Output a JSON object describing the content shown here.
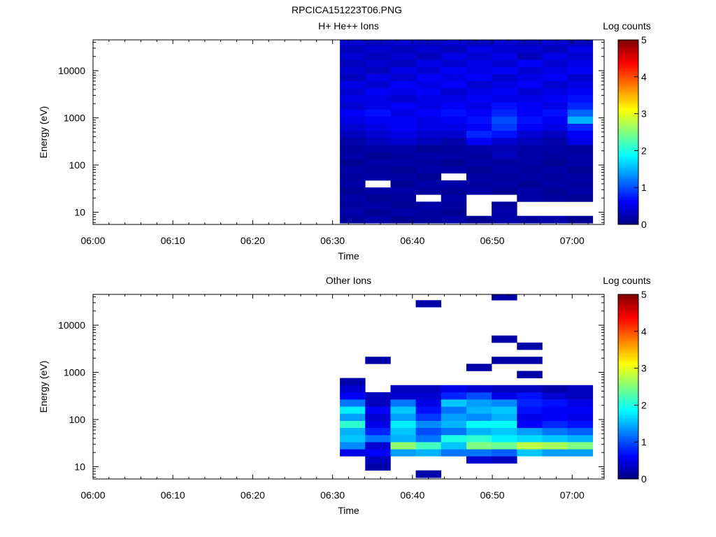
{
  "figure": {
    "title": "RPCICA151223T06.PNG"
  },
  "colorbar": {
    "label": "Log counts",
    "range": [
      0,
      5
    ],
    "ticks": [
      "0",
      "1",
      "2",
      "3",
      "4",
      "5"
    ],
    "colormap": "jet"
  },
  "chart_data": [
    {
      "type": "heatmap",
      "title": "H+ He++ Ions",
      "xlabel": "Time",
      "ylabel": "Energy (eV)",
      "x_ticks": [
        "06:00",
        "06:10",
        "06:20",
        "06:30",
        "06:40",
        "06:50",
        "07:00"
      ],
      "y_ticks": [
        "10",
        "100",
        "1000",
        "10000"
      ],
      "xlim": [
        "06:00",
        "07:04"
      ],
      "ylim": [
        5.5,
        45000
      ],
      "y_scale": "log",
      "color_label": "Log counts",
      "color_range": [
        0,
        5
      ],
      "x_bins": [
        "06:32:30",
        "06:35:40",
        "06:38:50",
        "06:42:00",
        "06:45:10",
        "06:48:20",
        "06:51:30",
        "06:54:40",
        "06:57:50",
        "07:01:00"
      ],
      "y_bins_eV": [
        7,
        10,
        14,
        20,
        28,
        40,
        56,
        80,
        112,
        160,
        225,
        320,
        450,
        640,
        900,
        1280,
        1800,
        2550,
        3600,
        5100,
        7200,
        10200,
        14400,
        20400,
        28800,
        40000
      ],
      "z_log_counts": [
        [
          0.15,
          0.2,
          0.1,
          0.15,
          0.2,
          0.1,
          0.2,
          0.15,
          0.2,
          0.1
        ],
        [
          0.2,
          0.1,
          0.2,
          0.15,
          0.1,
          null,
          0.2,
          null,
          null,
          null
        ],
        [
          0.15,
          0.2,
          0.1,
          0.2,
          0.15,
          null,
          0.15,
          null,
          null,
          null
        ],
        [
          0.2,
          0.1,
          0.15,
          null,
          0.2,
          null,
          null,
          0.2,
          0.15,
          0.1
        ],
        [
          0.1,
          0.2,
          0.2,
          0.15,
          0.1,
          0.2,
          0.1,
          0.2,
          0.1,
          0.2
        ],
        [
          0.2,
          null,
          0.1,
          0.2,
          0.2,
          0.15,
          0.2,
          0.1,
          0.2,
          0.15
        ],
        [
          0.15,
          0.2,
          0.2,
          0.1,
          null,
          0.2,
          0.15,
          0.2,
          0.15,
          0.2
        ],
        [
          0.2,
          0.15,
          0.1,
          0.2,
          0.2,
          0.1,
          0.2,
          0.15,
          0.2,
          0.1
        ],
        [
          0.1,
          0.2,
          0.2,
          0.15,
          0.1,
          0.2,
          0.15,
          0.2,
          0.1,
          0.2
        ],
        [
          0.2,
          0.1,
          0.15,
          0.2,
          0.2,
          0.15,
          0.3,
          0.2,
          0.15,
          0.2
        ],
        [
          0.15,
          0.2,
          0.2,
          0.1,
          0.15,
          0.2,
          0.25,
          0.2,
          0.2,
          0.15
        ],
        [
          0.2,
          0.3,
          0.4,
          0.3,
          0.2,
          0.6,
          0.4,
          0.3,
          0.2,
          0.5
        ],
        [
          0.3,
          0.4,
          0.5,
          0.4,
          0.4,
          0.8,
          0.7,
          0.4,
          0.3,
          0.6
        ],
        [
          0.4,
          0.5,
          0.6,
          0.5,
          0.5,
          0.6,
          0.9,
          0.6,
          0.5,
          0.8
        ],
        [
          0.5,
          0.6,
          0.6,
          0.5,
          0.6,
          0.7,
          1.0,
          0.7,
          0.6,
          1.5
        ],
        [
          0.6,
          0.7,
          0.5,
          0.6,
          0.7,
          0.6,
          0.8,
          0.6,
          0.7,
          1.1
        ],
        [
          0.4,
          0.5,
          0.6,
          0.5,
          0.6,
          0.5,
          0.7,
          0.6,
          0.5,
          0.8
        ],
        [
          0.5,
          0.5,
          0.4,
          0.5,
          0.5,
          0.6,
          0.5,
          0.5,
          0.6,
          0.7
        ],
        [
          0.4,
          0.6,
          0.5,
          0.6,
          0.4,
          0.5,
          0.6,
          0.4,
          0.5,
          0.6
        ],
        [
          0.5,
          0.4,
          0.6,
          0.5,
          0.6,
          0.4,
          0.5,
          0.6,
          0.4,
          0.5
        ],
        [
          0.3,
          0.5,
          0.4,
          0.6,
          0.5,
          0.6,
          0.4,
          0.5,
          0.6,
          0.4
        ],
        [
          0.4,
          0.3,
          0.5,
          0.4,
          0.6,
          0.5,
          0.6,
          0.4,
          0.5,
          0.6
        ],
        [
          0.3,
          0.4,
          0.3,
          0.5,
          0.4,
          0.5,
          0.4,
          0.6,
          0.4,
          0.5
        ],
        [
          0.4,
          0.3,
          0.4,
          0.3,
          0.5,
          0.4,
          0.5,
          0.3,
          0.5,
          0.4
        ],
        [
          0.3,
          0.4,
          0.3,
          0.4,
          0.3,
          0.5,
          0.4,
          0.4,
          0.3,
          0.5
        ],
        [
          0.4,
          0.3,
          0.4,
          0.3,
          0.4,
          0.3,
          0.4,
          0.3,
          0.4,
          0.3
        ]
      ]
    },
    {
      "type": "heatmap",
      "title": "Other Ions",
      "xlabel": "Time",
      "ylabel": "Energy (eV)",
      "x_ticks": [
        "06:00",
        "06:10",
        "06:20",
        "06:30",
        "06:40",
        "06:50",
        "07:00"
      ],
      "y_ticks": [
        "10",
        "100",
        "1000",
        "10000"
      ],
      "xlim": [
        "06:00",
        "07:04"
      ],
      "ylim": [
        5.5,
        45000
      ],
      "y_scale": "log",
      "color_label": "Log counts",
      "color_range": [
        0,
        5
      ],
      "x_bins": [
        "06:32:30",
        "06:35:40",
        "06:38:50",
        "06:42:00",
        "06:45:10",
        "06:48:20",
        "06:51:30",
        "06:54:40",
        "06:57:50",
        "07:01:00"
      ],
      "y_bins_eV": [
        7,
        10,
        14,
        20,
        28,
        40,
        56,
        80,
        112,
        160,
        225,
        320,
        450,
        640,
        900,
        1280,
        1800,
        2550,
        3600,
        5100,
        7200,
        10200,
        14400,
        20400,
        28800,
        40000
      ],
      "z_log_counts": [
        [
          null,
          null,
          null,
          0.2,
          null,
          null,
          null,
          null,
          null,
          null
        ],
        [
          null,
          0.2,
          null,
          null,
          null,
          null,
          null,
          null,
          null,
          null
        ],
        [
          null,
          0.3,
          null,
          null,
          null,
          0.4,
          0.3,
          null,
          null,
          null
        ],
        [
          0.5,
          0.6,
          1.4,
          1.5,
          1.2,
          1.2,
          1.1,
          1.6,
          1.4,
          1.4
        ],
        [
          1.3,
          0.4,
          2.6,
          2.2,
          1.6,
          2.5,
          2.4,
          2.8,
          2.7,
          2.5
        ],
        [
          1.6,
          1.2,
          1.5,
          1.2,
          2.0,
          2.1,
          1.8,
          1.7,
          1.6,
          1.5
        ],
        [
          1.5,
          0.8,
          1.6,
          1.0,
          1.2,
          1.5,
          1.6,
          1.4,
          1.2,
          1.1
        ],
        [
          2.1,
          0.5,
          1.8,
          1.3,
          1.5,
          1.9,
          1.9,
          0.6,
          0.8,
          0.7
        ],
        [
          1.4,
          0.4,
          1.4,
          0.9,
          1.4,
          1.3,
          1.5,
          0.5,
          0.6,
          0.5
        ],
        [
          1.8,
          0.6,
          1.6,
          0.7,
          1.2,
          1.5,
          1.6,
          0.7,
          0.6,
          0.6
        ],
        [
          1.2,
          0.3,
          1.2,
          0.5,
          1.6,
          1.4,
          1.3,
          0.8,
          0.7,
          0.5
        ],
        [
          0.6,
          0.3,
          0.4,
          0.4,
          0.8,
          1.0,
          0.5,
          0.7,
          0.4,
          0.3
        ],
        [
          0.4,
          null,
          0.3,
          0.3,
          0.5,
          0.4,
          0.3,
          0.3,
          0.2,
          0.3
        ],
        [
          0.2,
          null,
          null,
          null,
          null,
          null,
          null,
          null,
          null,
          null
        ],
        [
          null,
          null,
          null,
          null,
          null,
          null,
          null,
          0.2,
          null,
          null
        ],
        [
          null,
          null,
          null,
          null,
          null,
          0.2,
          null,
          null,
          null,
          null
        ],
        [
          null,
          0.2,
          null,
          null,
          null,
          null,
          0.2,
          0.2,
          null,
          null
        ],
        [
          null,
          null,
          null,
          null,
          null,
          null,
          null,
          null,
          null,
          null
        ],
        [
          null,
          null,
          null,
          null,
          null,
          null,
          null,
          0.2,
          null,
          null
        ],
        [
          null,
          null,
          null,
          null,
          null,
          null,
          0.2,
          null,
          null,
          null
        ],
        [
          null,
          null,
          null,
          null,
          null,
          null,
          null,
          null,
          null,
          null
        ],
        [
          null,
          null,
          null,
          null,
          null,
          null,
          null,
          null,
          null,
          null
        ],
        [
          null,
          null,
          null,
          null,
          null,
          null,
          null,
          null,
          null,
          null
        ],
        [
          null,
          null,
          null,
          null,
          null,
          null,
          null,
          null,
          null,
          null
        ],
        [
          null,
          null,
          null,
          0.2,
          null,
          null,
          null,
          null,
          null,
          null
        ],
        [
          null,
          null,
          null,
          null,
          null,
          null,
          0.2,
          null,
          null,
          null
        ]
      ]
    }
  ]
}
